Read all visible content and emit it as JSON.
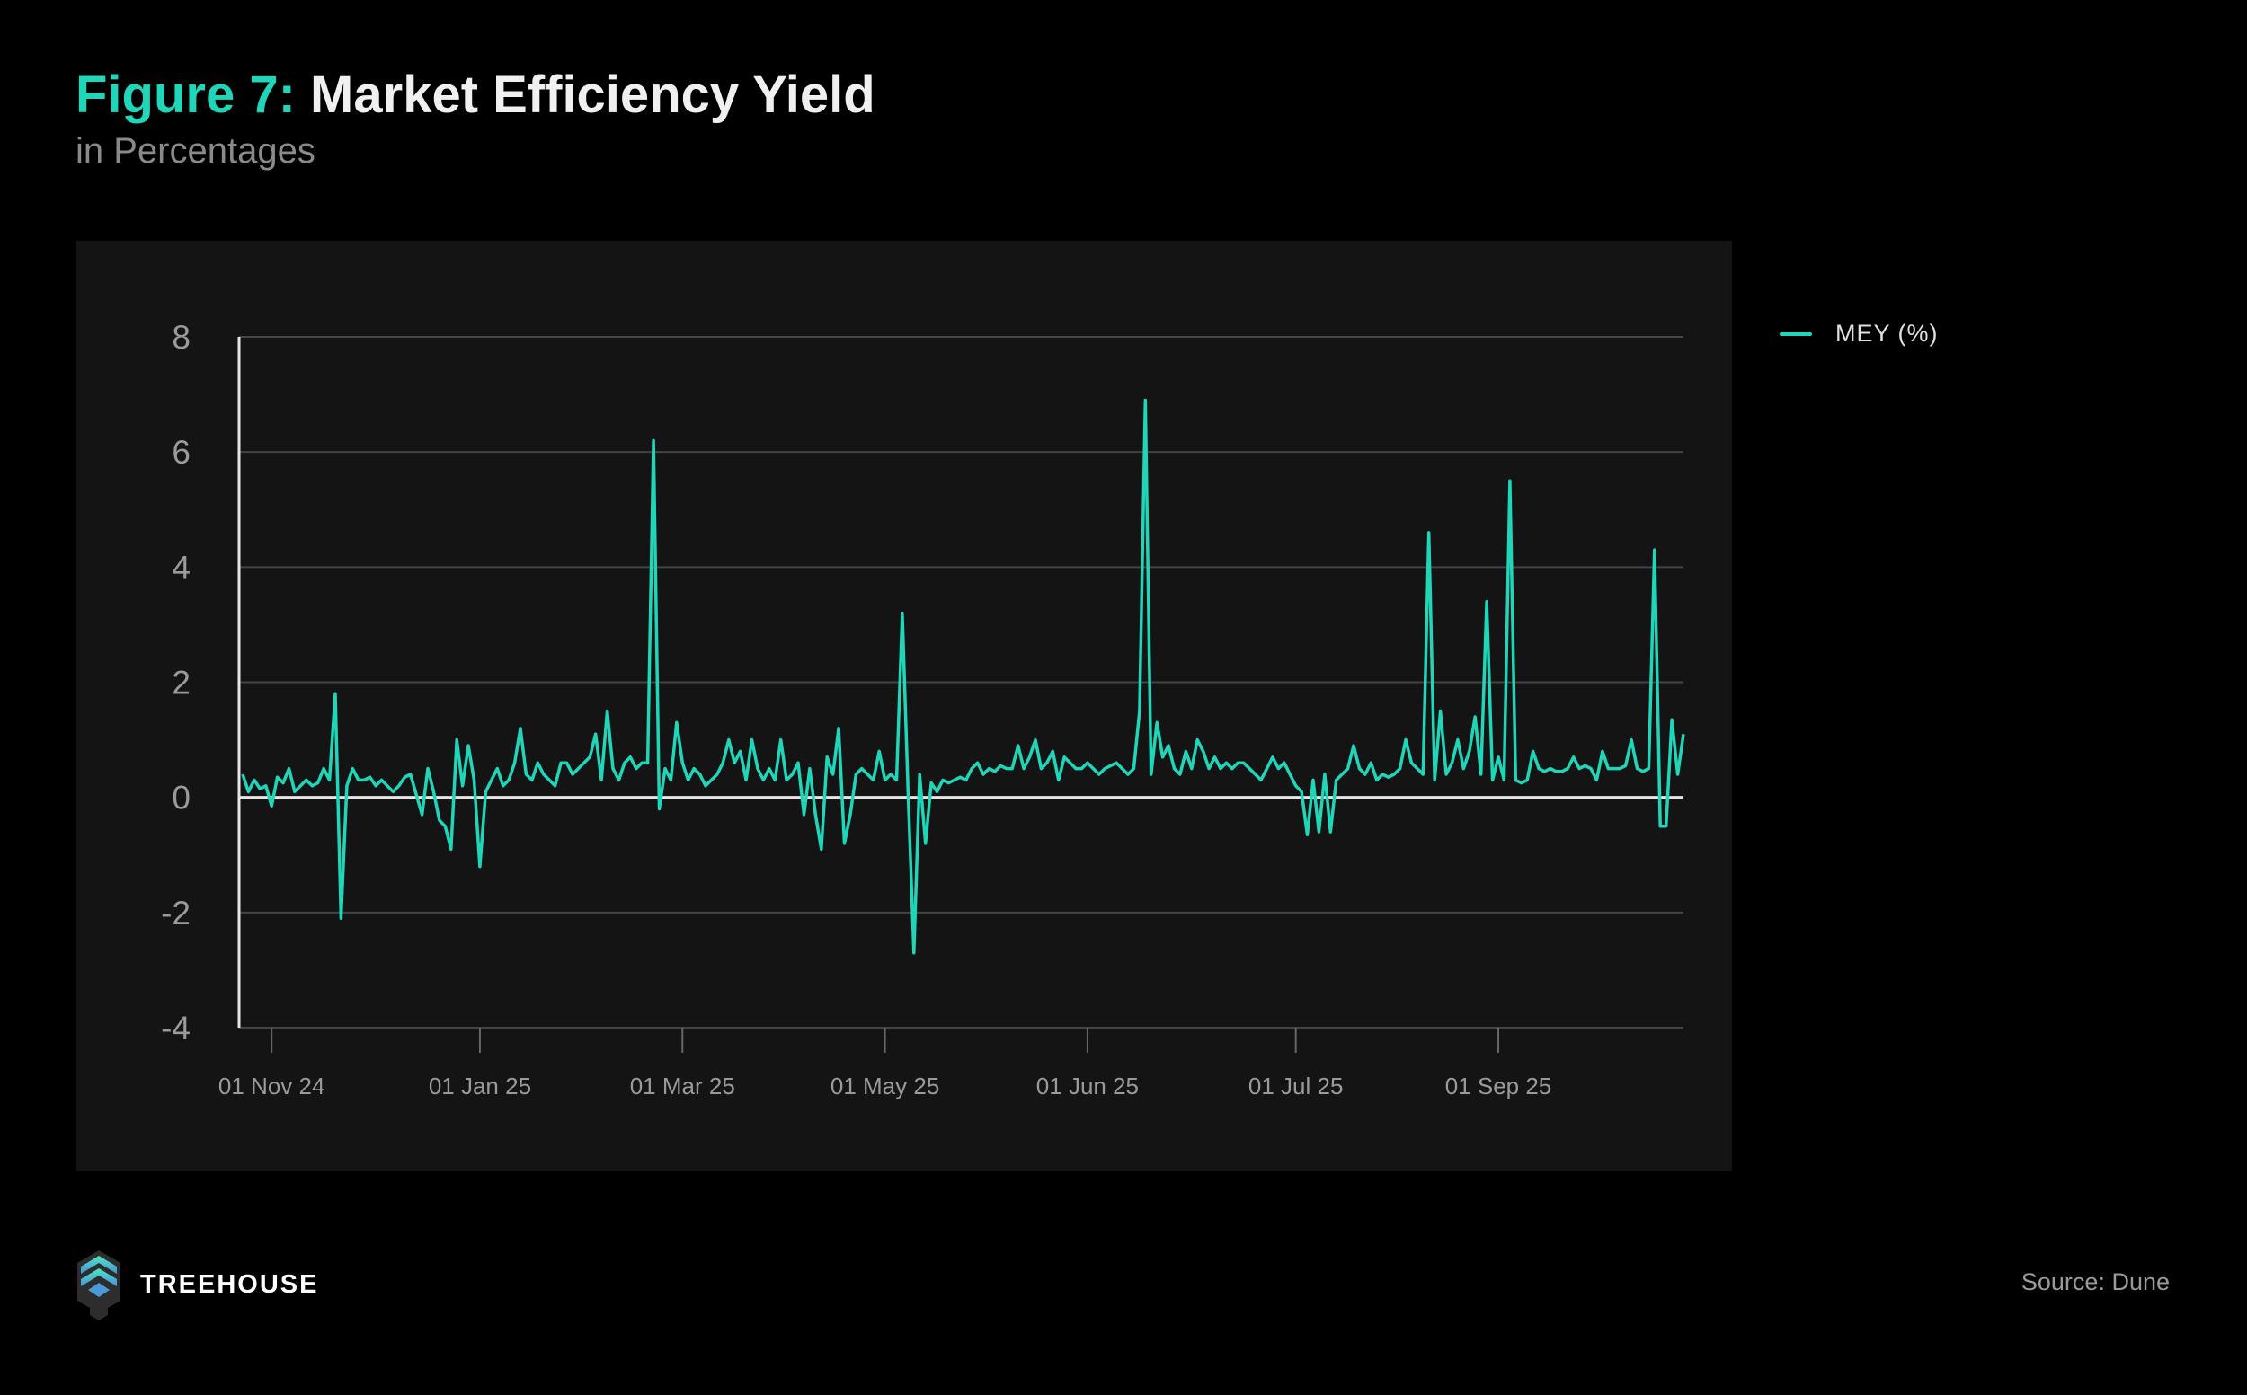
{
  "header": {
    "figure_label": "Figure 7:",
    "title": "Market Efficiency Yield",
    "subtitle": "in Percentages"
  },
  "footer": {
    "brand": "TREEHOUSE",
    "source": "Source: Dune"
  },
  "colors": {
    "line": "#1fd6b9",
    "grid": "#444444",
    "axis": "#e6e6e6",
    "panel": "#141414"
  },
  "chart_data": {
    "type": "line",
    "title": "Market Efficiency Yield",
    "subtitle": "in Percentages",
    "xlabel": "",
    "ylabel": "",
    "ylim": [
      -4,
      8
    ],
    "yticks": [
      -4,
      -2,
      0,
      2,
      4,
      6,
      8
    ],
    "grid": true,
    "legend_position": "right",
    "xticks": [
      {
        "index": 5,
        "label": "01 Nov 24"
      },
      {
        "index": 41,
        "label": "01 Jan 25"
      },
      {
        "index": 76,
        "label": "01 Mar 25"
      },
      {
        "index": 111,
        "label": "01 May 25"
      },
      {
        "index": 146,
        "label": "01 Jun 25"
      },
      {
        "index": 182,
        "label": "01 Jul 25"
      },
      {
        "index": 217,
        "label": "01 Sep 25"
      }
    ],
    "series": [
      {
        "name": "MEY (%)",
        "values": [
          0.4,
          0.1,
          0.3,
          0.15,
          0.2,
          -0.15,
          0.35,
          0.25,
          0.5,
          0.1,
          0.2,
          0.3,
          0.2,
          0.25,
          0.5,
          0.3,
          1.8,
          -2.1,
          0.2,
          0.5,
          0.3,
          0.3,
          0.35,
          0.2,
          0.3,
          0.2,
          0.1,
          0.2,
          0.35,
          0.4,
          0.05,
          -0.3,
          0.5,
          0.1,
          -0.4,
          -0.5,
          -0.9,
          1.0,
          0.2,
          0.9,
          0.3,
          -1.2,
          0.1,
          0.3,
          0.5,
          0.2,
          0.3,
          0.6,
          1.2,
          0.4,
          0.3,
          0.6,
          0.4,
          0.3,
          0.2,
          0.6,
          0.6,
          0.4,
          0.5,
          0.6,
          0.7,
          1.1,
          0.3,
          1.5,
          0.5,
          0.3,
          0.6,
          0.7,
          0.5,
          0.6,
          0.6,
          6.2,
          -0.2,
          0.5,
          0.3,
          1.3,
          0.6,
          0.3,
          0.5,
          0.4,
          0.2,
          0.3,
          0.4,
          0.6,
          1.0,
          0.6,
          0.8,
          0.3,
          1.0,
          0.5,
          0.3,
          0.5,
          0.3,
          1.0,
          0.3,
          0.4,
          0.6,
          -0.3,
          0.5,
          -0.3,
          -0.9,
          0.7,
          0.4,
          1.2,
          -0.8,
          -0.3,
          0.4,
          0.5,
          0.4,
          0.3,
          0.8,
          0.3,
          0.4,
          0.3,
          3.2,
          0.1,
          -2.7,
          0.4,
          -0.8,
          0.25,
          0.1,
          0.3,
          0.25,
          0.3,
          0.35,
          0.3,
          0.5,
          0.6,
          0.4,
          0.5,
          0.45,
          0.55,
          0.5,
          0.5,
          0.9,
          0.5,
          0.7,
          1.0,
          0.5,
          0.6,
          0.8,
          0.3,
          0.7,
          0.6,
          0.5,
          0.5,
          0.6,
          0.5,
          0.4,
          0.5,
          0.55,
          0.6,
          0.5,
          0.4,
          0.5,
          1.5,
          6.9,
          0.4,
          1.3,
          0.7,
          0.9,
          0.5,
          0.4,
          0.8,
          0.5,
          1.0,
          0.8,
          0.5,
          0.7,
          0.5,
          0.6,
          0.5,
          0.6,
          0.6,
          0.5,
          0.4,
          0.3,
          0.5,
          0.7,
          0.5,
          0.6,
          0.4,
          0.2,
          0.1,
          -0.65,
          0.3,
          -0.6,
          0.4,
          -0.6,
          0.3,
          0.4,
          0.5,
          0.9,
          0.5,
          0.4,
          0.6,
          0.3,
          0.4,
          0.35,
          0.4,
          0.5,
          1.0,
          0.6,
          0.5,
          0.4,
          4.6,
          0.3,
          1.5,
          0.4,
          0.6,
          1.0,
          0.5,
          0.8,
          1.4,
          0.4,
          3.4,
          0.3,
          0.7,
          0.3,
          5.5,
          0.3,
          0.25,
          0.3,
          0.8,
          0.5,
          0.45,
          0.5,
          0.45,
          0.45,
          0.5,
          0.7,
          0.5,
          0.55,
          0.5,
          0.3,
          0.8,
          0.5,
          0.5,
          0.5,
          0.55,
          1.0,
          0.5,
          0.45,
          0.5,
          4.3,
          -0.5,
          -0.5,
          1.35,
          0.4,
          1.1
        ]
      }
    ]
  }
}
